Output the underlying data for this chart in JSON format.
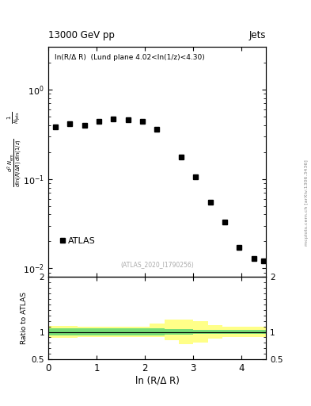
{
  "title_left": "13000 GeV pp",
  "title_right": "Jets",
  "inner_title": "ln(R/Δ R)  (Lund plane 4.02<ln(1/z)<4.30)",
  "watermark": "(ATLAS_2020_I1790256)",
  "arxiv_label": "mcplots.cern.ch [arXiv:1306.3436]",
  "xlabel": "ln (R/Δ R)",
  "ylabel_lines": [
    "d² Nₙₑₘₑₙ⁩₀ₙₙ",
    "1",
    "Nⱼₑₜₙ dln(R/ΔR) dln(1/z)"
  ],
  "data_x": [
    0.15,
    0.45,
    0.75,
    1.05,
    1.35,
    1.65,
    1.95,
    2.25,
    2.75,
    3.05,
    3.35,
    3.65,
    3.95,
    4.25,
    4.45
  ],
  "data_y": [
    0.38,
    0.41,
    0.4,
    0.44,
    0.47,
    0.46,
    0.44,
    0.36,
    0.175,
    0.105,
    0.055,
    0.033,
    0.017,
    0.013,
    0.012
  ],
  "ylim_main": [
    0.008,
    3.0
  ],
  "xlim": [
    0.0,
    4.5
  ],
  "ratio_ylim": [
    0.5,
    2.0
  ],
  "ratio_green_band_x": [
    0.0,
    0.3,
    0.6,
    0.9,
    1.2,
    1.5,
    1.8,
    2.1,
    2.4,
    2.7,
    3.0,
    3.3,
    3.6,
    3.9,
    4.2,
    4.5
  ],
  "ratio_green_band_lo": [
    0.93,
    0.93,
    0.93,
    0.94,
    0.94,
    0.94,
    0.94,
    0.94,
    0.95,
    0.95,
    0.96,
    0.97,
    0.97,
    0.97,
    0.97,
    0.97
  ],
  "ratio_green_band_hi": [
    1.07,
    1.07,
    1.07,
    1.06,
    1.06,
    1.06,
    1.06,
    1.06,
    1.05,
    1.05,
    1.04,
    1.03,
    1.03,
    1.03,
    1.03,
    1.03
  ],
  "ratio_yellow_band_x": [
    0.0,
    0.3,
    0.6,
    0.9,
    1.2,
    1.5,
    1.8,
    2.1,
    2.4,
    2.7,
    3.0,
    3.3,
    3.6,
    3.9,
    4.2,
    4.5
  ],
  "ratio_yellow_band_lo": [
    0.89,
    0.89,
    0.9,
    0.9,
    0.9,
    0.9,
    0.9,
    0.9,
    0.85,
    0.78,
    0.8,
    0.88,
    0.9,
    0.9,
    0.9,
    0.9
  ],
  "ratio_yellow_band_hi": [
    1.11,
    1.11,
    1.1,
    1.1,
    1.1,
    1.1,
    1.1,
    1.15,
    1.22,
    1.22,
    1.2,
    1.12,
    1.1,
    1.1,
    1.1,
    1.1
  ],
  "marker_color": "black",
  "marker_size": 4,
  "green_color": "#77dd77",
  "yellow_color": "#ffff88",
  "legend_label": "ATLAS",
  "main_xticks": [
    0,
    1,
    2,
    3,
    4
  ],
  "ratio_xticks": [
    0,
    1,
    2,
    3,
    4
  ]
}
